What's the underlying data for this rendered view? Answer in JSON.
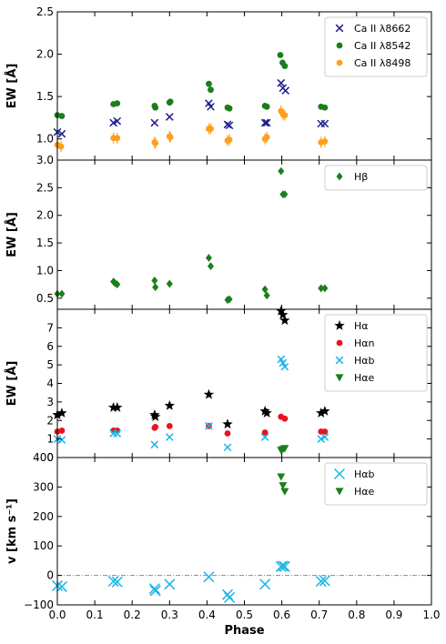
{
  "chart_data": [
    {
      "type": "scatter",
      "panel": "calcium-triplet",
      "ylabel": "EW [Å]",
      "xlim": [
        0,
        1.0
      ],
      "ylim": [
        0.75,
        2.5
      ],
      "yticks": [
        "1.0",
        "1.5",
        "2.0",
        "2.5"
      ],
      "yticks_values": [
        1.0,
        1.5,
        2.0,
        2.5
      ],
      "legend_position": "top-right",
      "series": [
        {
          "name": "Ca II λ8662",
          "marker": "x",
          "color": "#1f1f8f",
          "points": [
            [
              0.0,
              1.08
            ],
            [
              0.012,
              1.06
            ],
            [
              0.15,
              1.19
            ],
            [
              0.16,
              1.21
            ],
            [
              0.26,
              1.19
            ],
            [
              0.3,
              1.26
            ],
            [
              0.405,
              1.42
            ],
            [
              0.41,
              1.38
            ],
            [
              0.455,
              1.17
            ],
            [
              0.46,
              1.16
            ],
            [
              0.555,
              1.19
            ],
            [
              0.56,
              1.19
            ],
            [
              0.598,
              1.66
            ],
            [
              0.603,
              1.6
            ],
            [
              0.61,
              1.57
            ],
            [
              0.705,
              1.18
            ],
            [
              0.715,
              1.18
            ]
          ]
        },
        {
          "name": "Ca II λ8542",
          "marker": "o",
          "color": "#1a7f1a",
          "points": [
            [
              0.0,
              1.28
            ],
            [
              0.012,
              1.27
            ],
            [
              0.15,
              1.41
            ],
            [
              0.16,
              1.42
            ],
            [
              0.26,
              1.39
            ],
            [
              0.262,
              1.37
            ],
            [
              0.3,
              1.43
            ],
            [
              0.302,
              1.44
            ],
            [
              0.405,
              1.65
            ],
            [
              0.41,
              1.58
            ],
            [
              0.455,
              1.37
            ],
            [
              0.46,
              1.36
            ],
            [
              0.555,
              1.39
            ],
            [
              0.56,
              1.38
            ],
            [
              0.596,
              1.99
            ],
            [
              0.602,
              1.9
            ],
            [
              0.608,
              1.86
            ],
            [
              0.705,
              1.38
            ],
            [
              0.715,
              1.37
            ]
          ]
        },
        {
          "name": "Ca II λ8498",
          "marker": "o-err",
          "color": "#ff9e1b",
          "points": [
            [
              0.0,
              0.93
            ],
            [
              0.01,
              0.91
            ],
            [
              0.15,
              1.01
            ],
            [
              0.16,
              1.01
            ],
            [
              0.26,
              0.96
            ],
            [
              0.262,
              0.95
            ],
            [
              0.3,
              1.03
            ],
            [
              0.302,
              1.02
            ],
            [
              0.405,
              1.12
            ],
            [
              0.41,
              1.12
            ],
            [
              0.455,
              0.98
            ],
            [
              0.46,
              0.99
            ],
            [
              0.555,
              1.0
            ],
            [
              0.56,
              1.02
            ],
            [
              0.598,
              1.33
            ],
            [
              0.603,
              1.29
            ],
            [
              0.608,
              1.28
            ],
            [
              0.705,
              0.96
            ],
            [
              0.715,
              0.97
            ]
          ]
        }
      ]
    },
    {
      "type": "scatter",
      "panel": "h-beta",
      "ylabel": "EW [Å]",
      "xlim": [
        0,
        1.0
      ],
      "ylim": [
        0.3,
        3.0
      ],
      "yticks": [
        "0.5",
        "1.0",
        "1.5",
        "2.0",
        "2.5",
        "3.0"
      ],
      "yticks_values": [
        0.5,
        1.0,
        1.5,
        2.0,
        2.5,
        3.0
      ],
      "legend_position": "top-right",
      "series": [
        {
          "name": "Hβ",
          "marker": "D",
          "color": "#1a7f1a",
          "points": [
            [
              0.0,
              0.58
            ],
            [
              0.012,
              0.58
            ],
            [
              0.15,
              0.8
            ],
            [
              0.155,
              0.77
            ],
            [
              0.16,
              0.75
            ],
            [
              0.26,
              0.82
            ],
            [
              0.262,
              0.7
            ],
            [
              0.3,
              0.76
            ],
            [
              0.405,
              1.23
            ],
            [
              0.41,
              1.08
            ],
            [
              0.455,
              0.47
            ],
            [
              0.46,
              0.48
            ],
            [
              0.555,
              0.66
            ],
            [
              0.56,
              0.55
            ],
            [
              0.598,
              2.8
            ],
            [
              0.603,
              2.38
            ],
            [
              0.608,
              2.38
            ],
            [
              0.705,
              0.68
            ],
            [
              0.715,
              0.68
            ]
          ]
        }
      ]
    },
    {
      "type": "scatter",
      "panel": "h-alpha",
      "ylabel": "EW [Å]",
      "xlim": [
        0,
        1.0
      ],
      "ylim": [
        0,
        8.0
      ],
      "yticks": [
        "0",
        "1",
        "2",
        "3",
        "4",
        "5",
        "6",
        "7"
      ],
      "yticks_values": [
        0,
        1,
        2,
        3,
        4,
        5,
        6,
        7
      ],
      "legend_position": "top-right",
      "series": [
        {
          "name": "Hα",
          "marker": "star",
          "color": "#000000",
          "points": [
            [
              0.0,
              2.3
            ],
            [
              0.012,
              2.4
            ],
            [
              0.15,
              2.7
            ],
            [
              0.16,
              2.7
            ],
            [
              0.26,
              2.3
            ],
            [
              0.262,
              2.2
            ],
            [
              0.3,
              2.8
            ],
            [
              0.405,
              3.4
            ],
            [
              0.455,
              1.8
            ],
            [
              0.555,
              2.5
            ],
            [
              0.56,
              2.4
            ],
            [
              0.598,
              7.9
            ],
            [
              0.603,
              7.7
            ],
            [
              0.608,
              7.4
            ],
            [
              0.705,
              2.4
            ],
            [
              0.715,
              2.5
            ]
          ]
        },
        {
          "name": "Hαn",
          "marker": "o",
          "color": "#e8141c",
          "points": [
            [
              0.0,
              1.4
            ],
            [
              0.012,
              1.45
            ],
            [
              0.15,
              1.45
            ],
            [
              0.16,
              1.45
            ],
            [
              0.26,
              1.6
            ],
            [
              0.262,
              1.65
            ],
            [
              0.3,
              1.7
            ],
            [
              0.405,
              1.7
            ],
            [
              0.455,
              1.3
            ],
            [
              0.555,
              1.35
            ],
            [
              0.598,
              2.2
            ],
            [
              0.608,
              2.1
            ],
            [
              0.705,
              1.4
            ],
            [
              0.715,
              1.4
            ]
          ]
        },
        {
          "name": "Hαb",
          "marker": "x",
          "color": "#1fb4e6",
          "points": [
            [
              0.0,
              1.0
            ],
            [
              0.012,
              0.95
            ],
            [
              0.15,
              1.3
            ],
            [
              0.16,
              1.3
            ],
            [
              0.26,
              0.7
            ],
            [
              0.3,
              1.1
            ],
            [
              0.405,
              1.7
            ],
            [
              0.455,
              0.55
            ],
            [
              0.555,
              1.1
            ],
            [
              0.598,
              5.3
            ],
            [
              0.603,
              5.1
            ],
            [
              0.608,
              4.9
            ],
            [
              0.705,
              1.0
            ],
            [
              0.715,
              1.1
            ]
          ]
        },
        {
          "name": "Hαe",
          "marker": "v",
          "color": "#1a7f1a",
          "points": [
            [
              0.598,
              0.4
            ],
            [
              0.603,
              0.45
            ],
            [
              0.608,
              0.5
            ]
          ]
        }
      ]
    },
    {
      "type": "scatter",
      "panel": "velocity",
      "ylabel": "v [km s⁻¹]",
      "xlabel": "Phase",
      "xlim": [
        0,
        1.0
      ],
      "ylim": [
        -100,
        400
      ],
      "xticks": [
        "0.0",
        "0.1",
        "0.2",
        "0.3",
        "0.4",
        "0.5",
        "0.6",
        "0.7",
        "0.8",
        "0.9",
        "1.0"
      ],
      "xticks_values": [
        0.0,
        0.1,
        0.2,
        0.3,
        0.4,
        0.5,
        0.6,
        0.7,
        0.8,
        0.9,
        1.0
      ],
      "yticks": [
        "−100",
        "0",
        "100",
        "200",
        "300",
        "400"
      ],
      "yticks_values": [
        -100,
        0,
        100,
        200,
        300,
        400
      ],
      "zero_line": 0,
      "legend_position": "top-right",
      "series": [
        {
          "name": "Hαb",
          "marker": "x-big",
          "color": "#1fb4e6",
          "points": [
            [
              0.0,
              -35
            ],
            [
              0.012,
              -38
            ],
            [
              0.15,
              -20
            ],
            [
              0.16,
              -22
            ],
            [
              0.26,
              -45
            ],
            [
              0.262,
              -52
            ],
            [
              0.3,
              -30
            ],
            [
              0.405,
              -5
            ],
            [
              0.455,
              -65
            ],
            [
              0.46,
              -75
            ],
            [
              0.555,
              -30
            ],
            [
              0.598,
              30
            ],
            [
              0.603,
              32
            ],
            [
              0.608,
              30
            ],
            [
              0.705,
              -20
            ],
            [
              0.715,
              -18
            ]
          ]
        },
        {
          "name": "Hαe",
          "marker": "v",
          "color": "#1a7f1a",
          "points": [
            [
              0.598,
              335
            ],
            [
              0.603,
              305
            ],
            [
              0.608,
              285
            ]
          ]
        }
      ]
    }
  ]
}
